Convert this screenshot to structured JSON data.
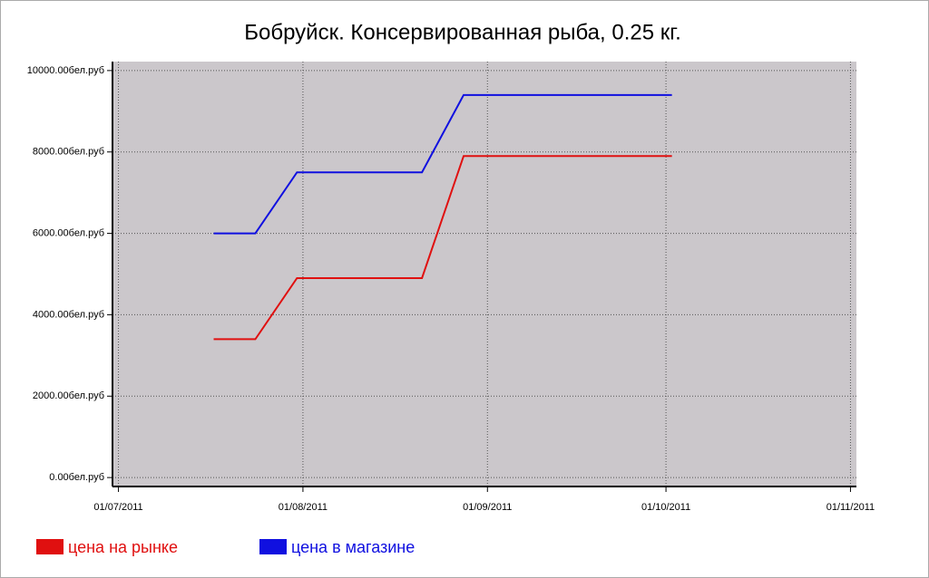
{
  "chart_data": {
    "type": "line",
    "title": "Бобруйск. Консервированная рыба, 0.25 кг.",
    "x": [
      "2011-07-17",
      "2011-07-24",
      "2011-07-31",
      "2011-08-07",
      "2011-08-14",
      "2011-08-21",
      "2011-08-28",
      "2011-09-04",
      "2011-09-11",
      "2011-09-18",
      "2011-09-25",
      "2011-10-02"
    ],
    "series": [
      {
        "name": "цена на рынке",
        "color": "#e01010",
        "values": [
          3400,
          3400,
          4900,
          4900,
          4900,
          4900,
          7900,
          7900,
          7900,
          7900,
          7900,
          7900
        ]
      },
      {
        "name": "цена в магазине",
        "color": "#1010e0",
        "values": [
          6000,
          6000,
          7500,
          7500,
          7500,
          7500,
          9400,
          9400,
          9400,
          9400,
          9400,
          9400
        ]
      }
    ],
    "xlim": [
      "2011-06-30",
      "2011-11-02"
    ],
    "xticks": [
      {
        "value": "2011-07-01",
        "label": "01/07/2011"
      },
      {
        "value": "2011-08-01",
        "label": "01/08/2011"
      },
      {
        "value": "2011-09-01",
        "label": "01/09/2011"
      },
      {
        "value": "2011-10-01",
        "label": "01/10/2011"
      },
      {
        "value": "2011-11-01",
        "label": "01/11/2011"
      }
    ],
    "ylim": [
      -220,
      10220
    ],
    "yticks": [
      {
        "value": 0,
        "label": "0.00бел.руб"
      },
      {
        "value": 2000,
        "label": "2000.00бел.руб"
      },
      {
        "value": 4000,
        "label": "4000.00бел.руб"
      },
      {
        "value": 6000,
        "label": "6000.00бел.руб"
      },
      {
        "value": 8000,
        "label": "8000.00бел.руб"
      },
      {
        "value": 10000,
        "label": "10000.00бел.руб"
      }
    ],
    "grid": true,
    "legend": "bottom-left"
  }
}
